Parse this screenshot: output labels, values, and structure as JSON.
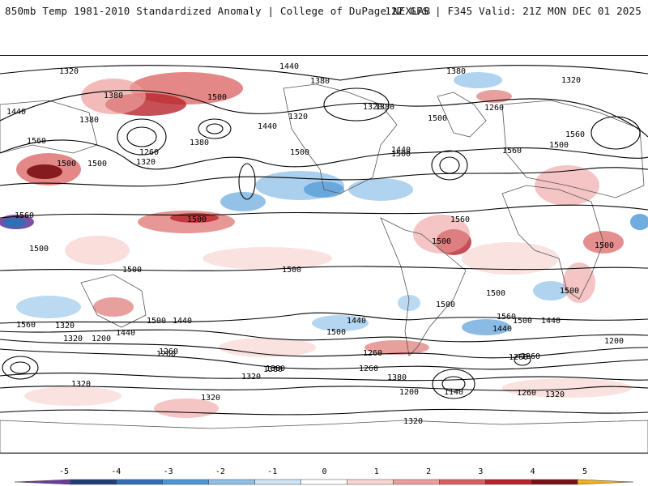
{
  "header": {
    "title": "850mb Temp 1981-2010 Standardized Anomaly | College of DuPage NEXLAB",
    "run_info": "12Z GFS | F345 Valid: 21Z MON DEC 01 2025"
  },
  "map": {
    "contour_labels": [
      "1320",
      "1440",
      "1380",
      "1380",
      "1320",
      "1500",
      "1260",
      "1440",
      "1380",
      "1380",
      "1320",
      "1320",
      "1560",
      "1500",
      "1440",
      "1440",
      "1560",
      "1500",
      "1380",
      "1380",
      "1320",
      "1260",
      "1500",
      "1500",
      "1560",
      "1560",
      "1500",
      "1500",
      "1560",
      "1500",
      "1500",
      "1500",
      "1500",
      "1500",
      "1500",
      "1500",
      "1560",
      "1500",
      "1500",
      "1500",
      "1440",
      "1440",
      "1500",
      "1500",
      "1440",
      "1440",
      "1560",
      "1200",
      "1320",
      "1380",
      "1260",
      "1320",
      "1260",
      "1380",
      "1320",
      "1200",
      "1260",
      "1140",
      "1260",
      "1320",
      "1320",
      "1260",
      "1200",
      "1260",
      "1320",
      "1440",
      "1380",
      "1260",
      "1320"
    ]
  },
  "legend": {
    "tick_labels": [
      "-5",
      "-4",
      "-3",
      "-2",
      "-1",
      "0",
      "1",
      "2",
      "3",
      "4",
      "5"
    ],
    "colors": [
      "#6a3d9a",
      "#223e7a",
      "#2f6fb6",
      "#4d97d6",
      "#8ec0e8",
      "#cfe4f5",
      "#ffffff",
      "#f8d6d3",
      "#ec9e9c",
      "#d9605e",
      "#b8242a",
      "#7a0f14",
      "#f2b01d"
    ]
  }
}
